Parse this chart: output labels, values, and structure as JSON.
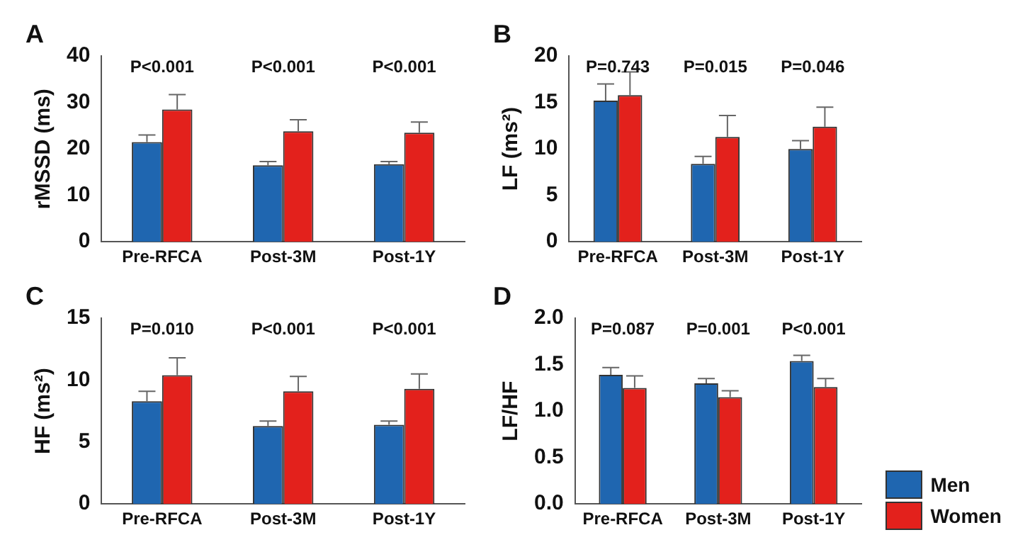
{
  "chart_data": [
    {
      "type": "bar",
      "title": "A",
      "ylabel": "rMSSD (ms)",
      "categories": [
        "Pre-RFCA",
        "Post-3M",
        "Post-1Y"
      ],
      "ylim": [
        0,
        40
      ],
      "yticks": [
        0,
        10,
        20,
        30,
        40
      ],
      "grid": false,
      "legend": false,
      "series": [
        {
          "color": "#1f66b0",
          "values": [
            21.5,
            16.5,
            16.7
          ],
          "errors": [
            [
              21.5,
              23
            ],
            [
              16.5,
              17.3
            ],
            [
              16.7,
              17.3
            ]
          ]
        },
        {
          "color": "#e3211c",
          "values": [
            28.5,
            23.8,
            23.5
          ],
          "errors": [
            [
              28.5,
              31.7
            ],
            [
              23.8,
              26.3
            ],
            [
              23.5,
              25.8
            ]
          ]
        }
      ],
      "annotations": [
        "P<0.001",
        "P<0.001",
        "P<0.001"
      ]
    },
    {
      "type": "bar",
      "title": "B",
      "ylabel": "LF (ms²)",
      "categories": [
        "Pre-RFCA",
        "Post-3M",
        "Post-1Y"
      ],
      "ylim": [
        0,
        20
      ],
      "yticks": [
        0,
        5,
        10,
        15,
        20
      ],
      "grid": false,
      "legend": false,
      "series": [
        {
          "color": "#1f66b0",
          "values": [
            15.2,
            8.4,
            10.0
          ],
          "errors": [
            [
              15.2,
              17.0
            ],
            [
              8.4,
              9.2
            ],
            [
              10.0,
              10.9
            ]
          ]
        },
        {
          "color": "#e3211c",
          "values": [
            15.8,
            11.3,
            12.4
          ],
          "errors": [
            [
              15.8,
              18.3
            ],
            [
              11.3,
              13.6
            ],
            [
              12.4,
              14.5
            ]
          ]
        }
      ],
      "annotations": [
        "P=0.743",
        "P=0.015",
        "P=0.046"
      ]
    },
    {
      "type": "bar",
      "title": "C",
      "ylabel": "HF (ms²)",
      "categories": [
        "Pre-RFCA",
        "Post-3M",
        "Post-1Y"
      ],
      "ylim": [
        0,
        15
      ],
      "yticks": [
        0,
        5,
        10,
        15
      ],
      "grid": false,
      "legend": false,
      "series": [
        {
          "color": "#1f66b0",
          "values": [
            8.3,
            6.3,
            6.4
          ],
          "errors": [
            [
              8.3,
              9.1
            ],
            [
              6.3,
              6.7
            ],
            [
              6.4,
              6.7
            ]
          ]
        },
        {
          "color": "#e3211c",
          "values": [
            10.4,
            9.1,
            9.3
          ],
          "errors": [
            [
              10.4,
              11.8
            ],
            [
              9.1,
              10.3
            ],
            [
              9.3,
              10.5
            ]
          ]
        }
      ],
      "annotations": [
        "P=0.010",
        "P<0.001",
        "P<0.001"
      ]
    },
    {
      "type": "bar",
      "title": "D",
      "ylabel": "LF/HF",
      "categories": [
        "Pre-RFCA",
        "Post-3M",
        "Post-1Y"
      ],
      "ylim": [
        0,
        2.0
      ],
      "yticks": [
        {
          "value": 0,
          "label": "0.0"
        },
        0.5,
        {
          "value": 1,
          "label": "1.0"
        },
        1.5,
        {
          "value": 2,
          "label": "2.0"
        }
      ],
      "grid": false,
      "legend": "bottom right",
      "series": [
        {
          "name": "Men",
          "color": "#1f66b0",
          "values": [
            1.39,
            1.3,
            1.54
          ],
          "errors": [
            [
              1.39,
              1.47
            ],
            [
              1.3,
              1.35
            ],
            [
              1.54,
              1.6
            ]
          ]
        },
        {
          "name": "Women",
          "color": "#e3211c",
          "values": [
            1.25,
            1.15,
            1.26
          ],
          "errors": [
            [
              1.25,
              1.38
            ],
            [
              1.15,
              1.22
            ],
            [
              1.26,
              1.35
            ]
          ]
        }
      ],
      "annotations": [
        "P=0.087",
        "P=0.001",
        "P<0.001"
      ]
    }
  ]
}
